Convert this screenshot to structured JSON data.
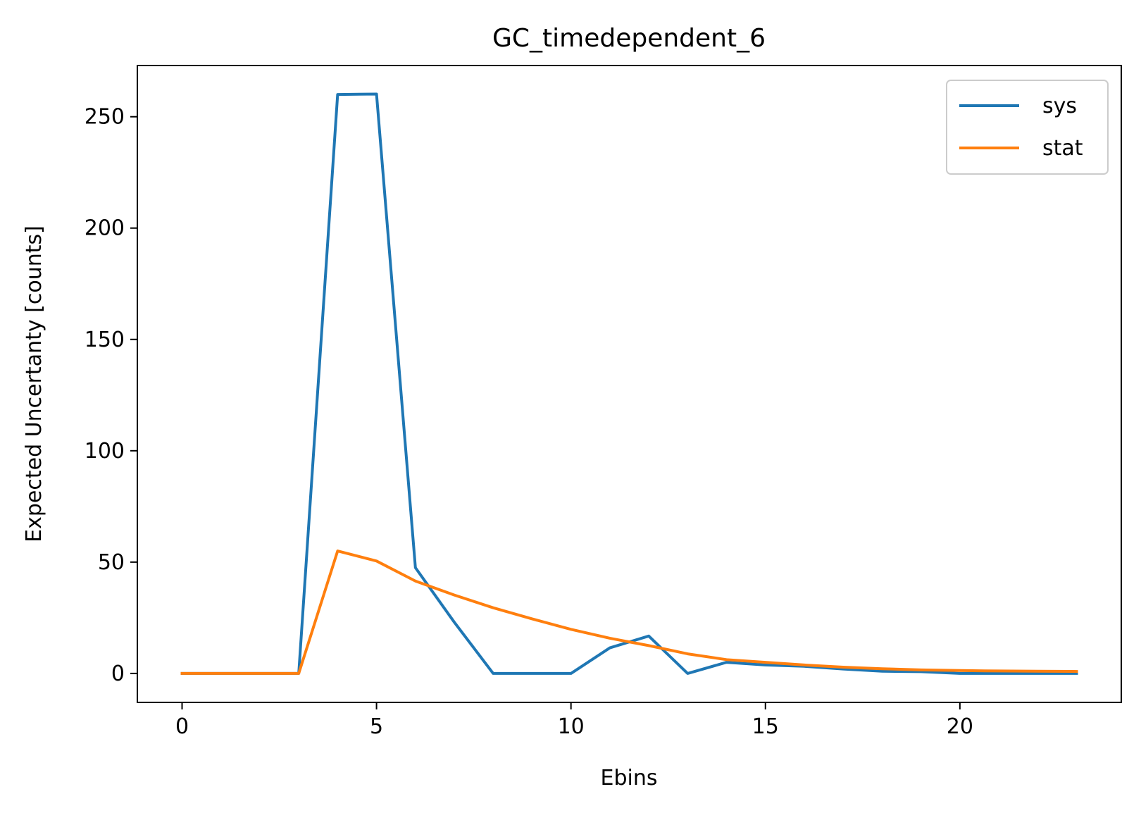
{
  "chart_data": {
    "type": "line",
    "title": "GC_timedependent_6",
    "xlabel": "Ebins",
    "ylabel": "Expected Uncertanty [counts]",
    "xlim": [
      -1.15,
      24.15
    ],
    "ylim": [
      -13,
      273
    ],
    "xticks": [
      0,
      5,
      10,
      15,
      20
    ],
    "yticks": [
      0,
      50,
      100,
      150,
      200,
      250
    ],
    "grid": false,
    "legend_position": "top-right",
    "x": [
      0,
      1,
      2,
      3,
      4,
      5,
      6,
      7,
      8,
      9,
      10,
      11,
      12,
      13,
      14,
      15,
      16,
      17,
      18,
      19,
      20,
      21,
      22,
      23
    ],
    "series": [
      {
        "name": "sys",
        "color": "#1f77b4",
        "values": [
          0,
          0,
          0,
          0,
          260,
          260.2,
          47.5,
          23,
          0,
          0,
          0,
          11.5,
          16.8,
          0,
          5,
          3.8,
          3.2,
          2,
          1,
          0.8,
          0,
          0,
          0,
          0
        ]
      },
      {
        "name": "stat",
        "color": "#ff7f0e",
        "values": [
          0,
          0,
          0,
          0,
          55,
          50.5,
          41.5,
          35.2,
          29.5,
          24.5,
          19.8,
          15.8,
          12.5,
          8.8,
          6.2,
          5,
          3.8,
          2.8,
          2.1,
          1.6,
          1.3,
          1.1,
          1,
          0.9
        ]
      }
    ]
  }
}
